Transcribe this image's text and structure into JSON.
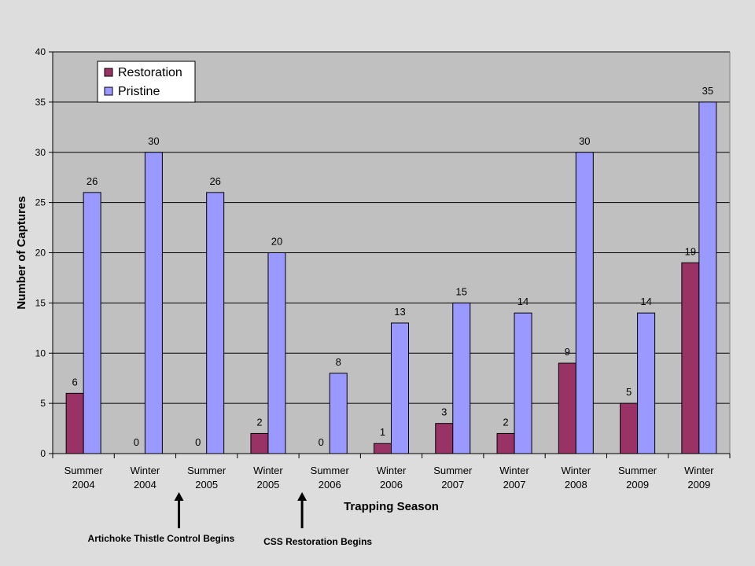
{
  "chart_data": {
    "type": "bar",
    "categories": [
      [
        "Summer",
        "2004"
      ],
      [
        "Winter",
        "2004"
      ],
      [
        "Summer",
        "2005"
      ],
      [
        "Winter",
        "2005"
      ],
      [
        "Summer",
        "2006"
      ],
      [
        "Winter",
        "2006"
      ],
      [
        "Summer",
        "2007"
      ],
      [
        "Winter",
        "2007"
      ],
      [
        "Winter",
        "2008"
      ],
      [
        "Summer",
        "2009"
      ],
      [
        "Winter",
        "2009"
      ]
    ],
    "series": [
      {
        "name": "Restoration",
        "color": "#993366",
        "values": [
          6,
          0,
          0,
          2,
          0,
          1,
          3,
          2,
          9,
          5,
          19
        ]
      },
      {
        "name": "Pristine",
        "color": "#9999ff",
        "values": [
          26,
          30,
          26,
          20,
          8,
          13,
          15,
          14,
          30,
          14,
          35
        ]
      }
    ],
    "title": "",
    "xlabel": "Trapping Season",
    "ylabel": "Number of Captures",
    "ylim": [
      0,
      40
    ],
    "yticks": [
      0,
      5,
      10,
      15,
      20,
      25,
      30,
      35,
      40
    ],
    "grid": true,
    "legend": "top-left",
    "plot_background": "#c0c0c0",
    "data_labels": true
  },
  "annotations": [
    {
      "text": "Artichoke Thistle Control Begins",
      "after_category_index": 1
    },
    {
      "text": "CSS Restoration Begins",
      "after_category_index": 3
    }
  ]
}
